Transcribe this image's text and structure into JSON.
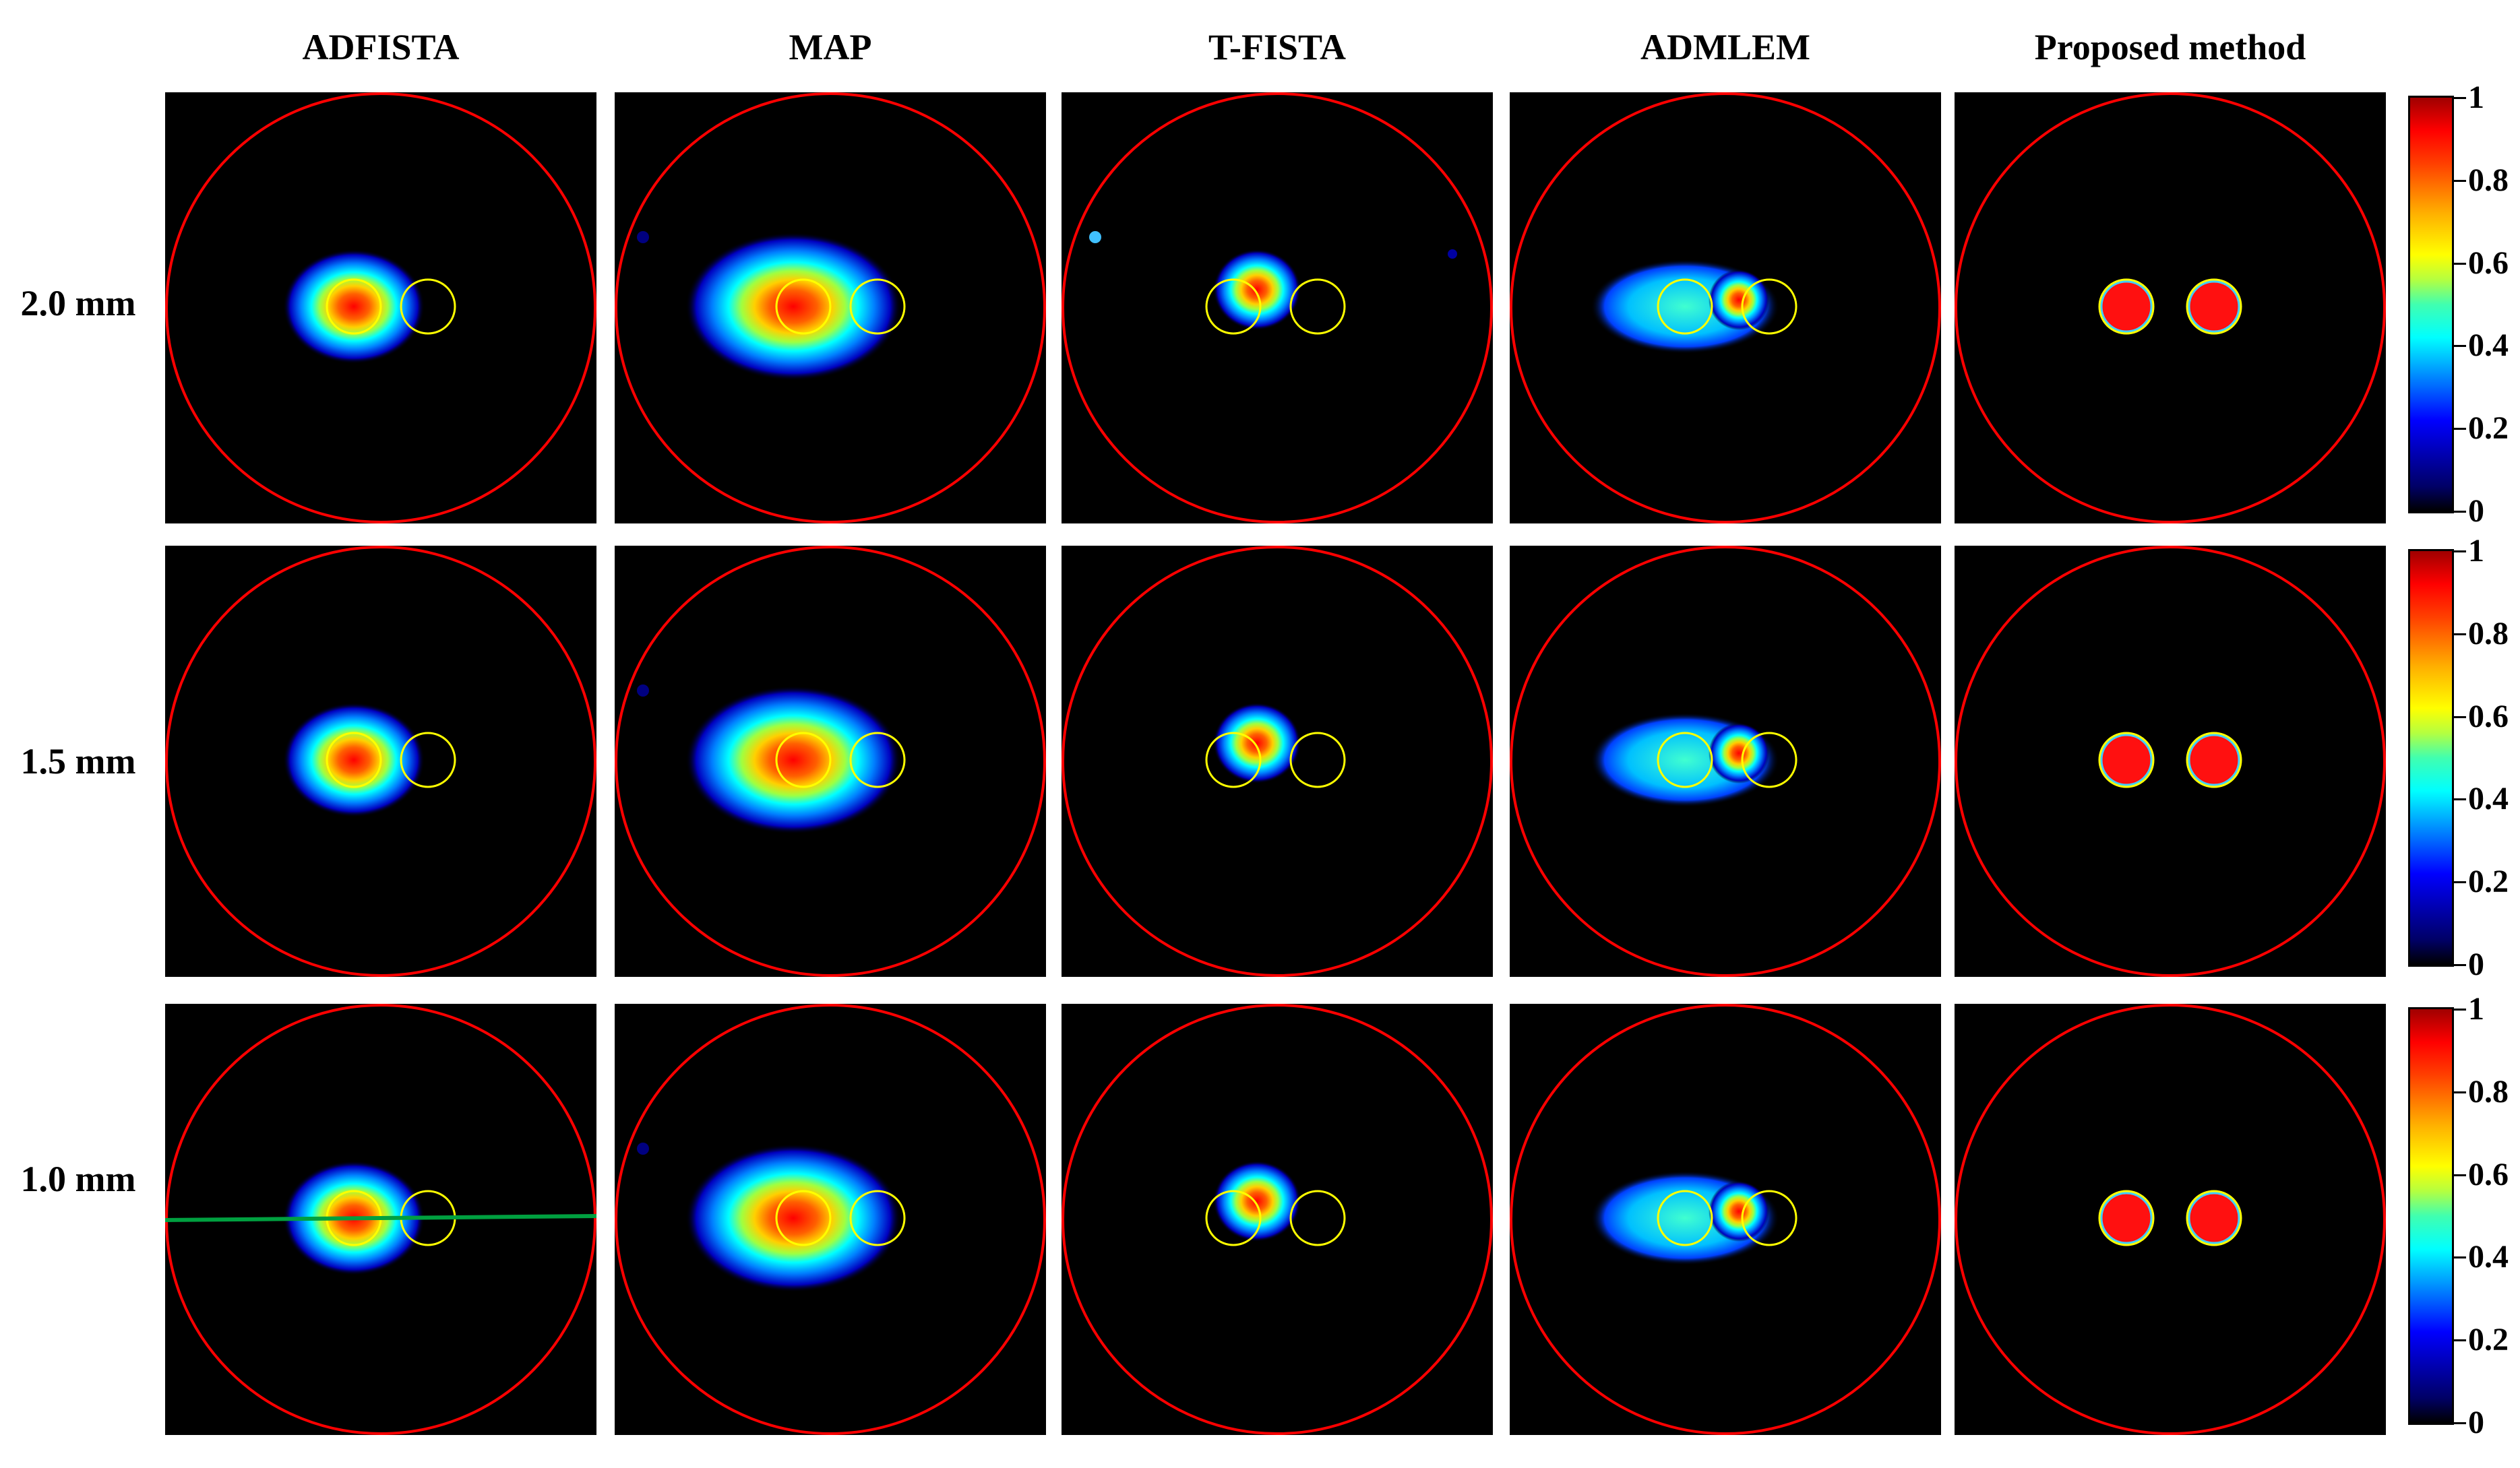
{
  "columns": [
    "ADFISTA",
    "MAP",
    "T-FISTA",
    "ADMLEM",
    "Proposed method"
  ],
  "rows": [
    "2.0 mm",
    "1.5 mm",
    "1.0 mm"
  ],
  "colorbar": {
    "ticks": [
      "1",
      "0.8",
      "0.6",
      "0.4",
      "0.2",
      "0"
    ],
    "colormap": "jet",
    "min": 0,
    "max": 1
  },
  "colors": {
    "boundary": "#ff0000",
    "target": "#ffff00",
    "profile_line": "#00a040",
    "background": "#000000"
  }
}
